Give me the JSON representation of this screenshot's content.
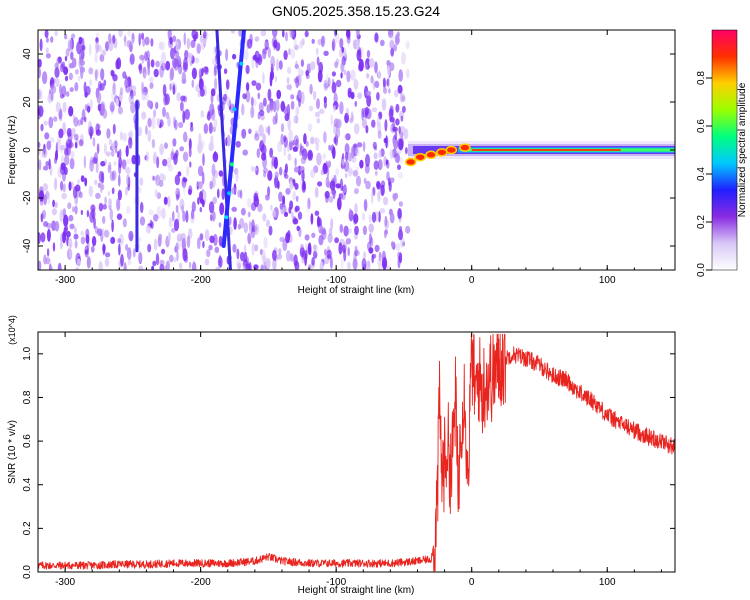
{
  "title": "GN05.2025.358.15.23.G24",
  "colors": {
    "snr_line": "#e8241f",
    "scatter_noise": "#7b2cf2",
    "frame": "#000000",
    "colormap": [
      "#ffffff",
      "#d9c8f7",
      "#8a2be2",
      "#2020ff",
      "#00c8ff",
      "#00ff80",
      "#9aff00",
      "#ffd000",
      "#ff3000",
      "#ff0066"
    ]
  },
  "chart_data": [
    {
      "type": "heatmap",
      "xlabel": "Height of straight line (km)",
      "ylabel": "Frequency (Hz)",
      "xlim": [
        -320,
        150
      ],
      "ylim": [
        -50,
        50
      ],
      "x_ticks": [
        -300,
        -200,
        -100,
        0,
        100
      ],
      "y_ticks": [
        -40,
        -20,
        0,
        20,
        40
      ],
      "colorbar": {
        "label": "Normalized spectral amplitude",
        "range": [
          0,
          1
        ],
        "ticks": [
          "0.0",
          "0.2",
          "0.4",
          "0.6",
          "0.8"
        ]
      },
      "noise_region_x": [
        -320,
        -47
      ],
      "traces": [
        {
          "x1": -188,
          "y1": 50,
          "x2": -178,
          "y2": -50
        },
        {
          "x1": -168,
          "y1": 50,
          "x2": -183,
          "y2": -40
        },
        {
          "x1": -247,
          "y1": 20,
          "x2": -247,
          "y2": -42
        }
      ],
      "band": {
        "x_start": -47,
        "x_end": 150,
        "center_hz": 0
      }
    },
    {
      "type": "line",
      "xlabel": "Height of straight line (km)",
      "ylabel": "SNR (10 * v/v)",
      "y_multiplier": "(x10^4)",
      "xlim": [
        -320,
        150
      ],
      "ylim": [
        0,
        1.1
      ],
      "x_ticks": [
        -300,
        -200,
        -100,
        0,
        100
      ],
      "y_ticks": [
        0.0,
        0.2,
        0.4,
        0.6,
        0.8,
        1.0
      ],
      "series": [
        {
          "x": [
            -320,
            -300,
            -280,
            -260,
            -240,
            -220,
            -200,
            -180,
            -160,
            -150,
            -140,
            -120,
            -100,
            -80,
            -60,
            -40,
            -30,
            -27,
            -25,
            -24,
            -22,
            -20,
            -18,
            -15,
            -12,
            -10,
            -8,
            -5,
            -3,
            0,
            3,
            5,
            8,
            10,
            15,
            20,
            25,
            30,
            40,
            50,
            60,
            70,
            80,
            90,
            100,
            110,
            120,
            130,
            140,
            150
          ],
          "y": [
            0.03,
            0.03,
            0.03,
            0.035,
            0.035,
            0.04,
            0.04,
            0.04,
            0.05,
            0.07,
            0.05,
            0.04,
            0.04,
            0.04,
            0.04,
            0.05,
            0.06,
            0.15,
            0.4,
            0.8,
            0.45,
            0.5,
            0.6,
            0.45,
            0.8,
            0.35,
            0.7,
            0.85,
            0.4,
            1.0,
            0.8,
            0.9,
            0.82,
            0.88,
            0.9,
            0.95,
            0.98,
            1.0,
            0.98,
            0.95,
            0.9,
            0.88,
            0.82,
            0.78,
            0.72,
            0.68,
            0.65,
            0.62,
            0.6,
            0.57
          ]
        }
      ]
    }
  ]
}
